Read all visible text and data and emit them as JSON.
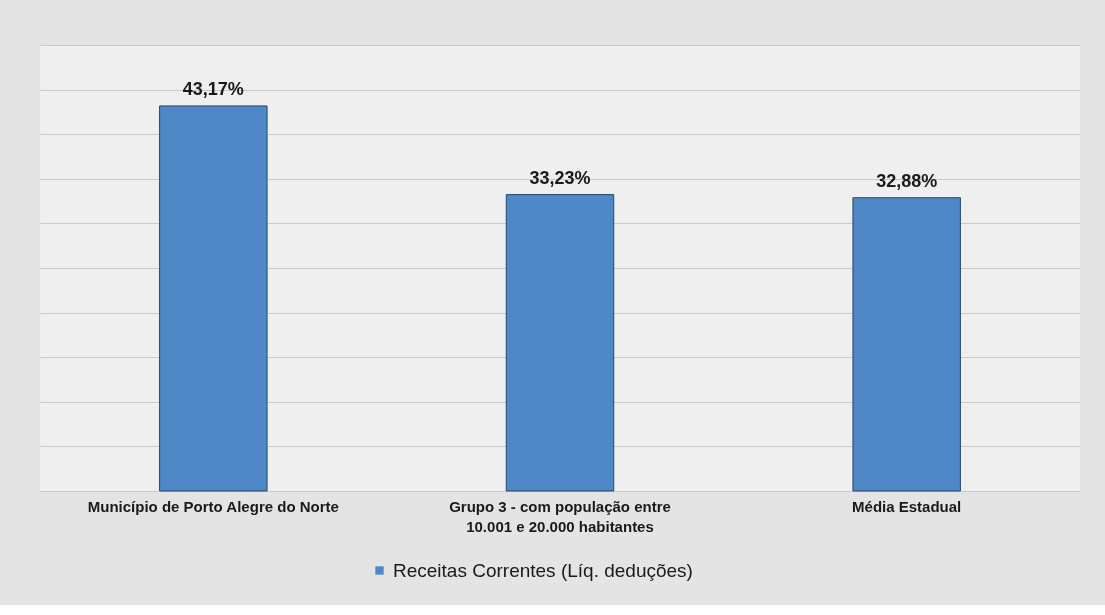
{
  "chart_data": {
    "type": "bar",
    "categories": [
      "Município de Porto Alegre do Norte",
      "Grupo 3 - com população entre 10.001 e 20.000 habitantes",
      "Média Estadual"
    ],
    "series": [
      {
        "name": "Receitas Correntes (Líq. deduções)",
        "color": "#4f88c6",
        "values": [
          43.17,
          33.23,
          32.88
        ],
        "value_labels": [
          "43,17%",
          "33,23%",
          "32,88%"
        ]
      }
    ],
    "ylim": [
      0,
      50
    ],
    "yticks": [
      {
        "value": 0,
        "label": null
      },
      {
        "value": 5,
        "label": null
      },
      {
        "value": 10,
        "label": null
      },
      {
        "value": 15,
        "label": null
      },
      {
        "value": 20,
        "label": null
      },
      {
        "value": 25,
        "label": null
      },
      {
        "value": 30,
        "label": null
      },
      {
        "value": 35,
        "label": null
      },
      {
        "value": 40,
        "label": null
      },
      {
        "value": 45,
        "label": null
      },
      {
        "value": 50,
        "label": null
      }
    ],
    "grid": "y",
    "legend": "bottom",
    "tick_labels": "x"
  }
}
